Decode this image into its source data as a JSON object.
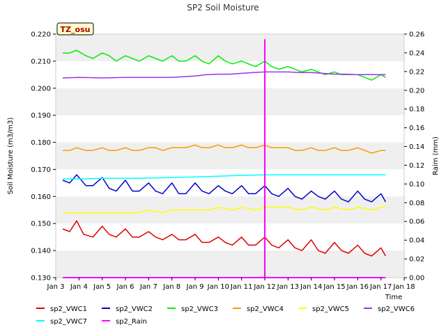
{
  "chart_data": {
    "type": "line",
    "title": "SP2 Soil Moisture",
    "site_label": "TZ_osu",
    "xlabel": "Time",
    "ylabel": "Soil Moisture (m3/m3)",
    "y2label": "Raim (mm)",
    "xlim": [
      3,
      18
    ],
    "ylim": [
      0.13,
      0.22
    ],
    "y2lim": [
      0.0,
      0.26
    ],
    "x_ticks": [
      {
        "value": 3,
        "label": "Jan 3"
      },
      {
        "value": 4,
        "label": "Jan 4"
      },
      {
        "value": 5,
        "label": "Jan 5"
      },
      {
        "value": 6,
        "label": "Jan 6"
      },
      {
        "value": 7,
        "label": "Jan 7"
      },
      {
        "value": 8,
        "label": "Jan 8"
      },
      {
        "value": 9,
        "label": "Jan 9"
      },
      {
        "value": 10,
        "label": "Jan 10"
      },
      {
        "value": 11,
        "label": "Jan 11"
      },
      {
        "value": 12,
        "label": "Jan 12"
      },
      {
        "value": 13,
        "label": "Jan 13"
      },
      {
        "value": 14,
        "label": "Jan 14"
      },
      {
        "value": 15,
        "label": "Jan 15"
      },
      {
        "value": 16,
        "label": "Jan 16"
      },
      {
        "value": 17,
        "label": "Jan 17"
      },
      {
        "value": 18,
        "label": "Jan 18"
      }
    ],
    "y_ticks": [
      "0.130",
      "0.140",
      "0.150",
      "0.160",
      "0.170",
      "0.180",
      "0.190",
      "0.200",
      "0.210",
      "0.220"
    ],
    "y2_ticks": [
      "0.00",
      "0.02",
      "0.04",
      "0.06",
      "0.08",
      "0.10",
      "0.12",
      "0.14",
      "0.16",
      "0.18",
      "0.20",
      "0.22",
      "0.24",
      "0.26"
    ],
    "grid": "horizontal bands",
    "legend_placement": "bottom",
    "series": [
      {
        "name": "sp2_VWC1",
        "color": "#dd0000",
        "axis": "left",
        "x": [
          3.3,
          3.6,
          3.9,
          4.2,
          4.6,
          5.0,
          5.3,
          5.6,
          6.0,
          6.3,
          6.6,
          7.0,
          7.3,
          7.6,
          8.0,
          8.3,
          8.6,
          9.0,
          9.3,
          9.6,
          10.0,
          10.3,
          10.6,
          11.0,
          11.3,
          11.6,
          12.0,
          12.3,
          12.6,
          13.0,
          13.3,
          13.6,
          14.0,
          14.3,
          14.6,
          15.0,
          15.3,
          15.6,
          16.0,
          16.3,
          16.6,
          17.0,
          17.2
        ],
        "y": [
          0.148,
          0.147,
          0.151,
          0.146,
          0.145,
          0.149,
          0.146,
          0.145,
          0.148,
          0.145,
          0.145,
          0.147,
          0.145,
          0.144,
          0.146,
          0.144,
          0.144,
          0.146,
          0.143,
          0.143,
          0.145,
          0.143,
          0.142,
          0.145,
          0.142,
          0.142,
          0.145,
          0.142,
          0.141,
          0.144,
          0.141,
          0.14,
          0.144,
          0.14,
          0.139,
          0.143,
          0.14,
          0.139,
          0.142,
          0.139,
          0.138,
          0.141,
          0.138
        ]
      },
      {
        "name": "sp2_VWC2",
        "color": "#0000cc",
        "axis": "left",
        "x": [
          3.3,
          3.6,
          3.9,
          4.3,
          4.6,
          5.0,
          5.3,
          5.6,
          6.0,
          6.3,
          6.6,
          7.0,
          7.3,
          7.6,
          8.0,
          8.3,
          8.6,
          9.0,
          9.3,
          9.6,
          10.0,
          10.3,
          10.6,
          11.0,
          11.3,
          11.6,
          12.0,
          12.3,
          12.6,
          13.0,
          13.3,
          13.6,
          14.0,
          14.3,
          14.6,
          15.0,
          15.3,
          15.6,
          16.0,
          16.3,
          16.6,
          17.0,
          17.2
        ],
        "y": [
          0.166,
          0.165,
          0.168,
          0.164,
          0.164,
          0.167,
          0.163,
          0.162,
          0.166,
          0.162,
          0.162,
          0.165,
          0.162,
          0.161,
          0.165,
          0.161,
          0.161,
          0.165,
          0.162,
          0.161,
          0.164,
          0.162,
          0.161,
          0.164,
          0.161,
          0.161,
          0.164,
          0.161,
          0.16,
          0.163,
          0.16,
          0.159,
          0.162,
          0.16,
          0.159,
          0.162,
          0.159,
          0.158,
          0.162,
          0.159,
          0.158,
          0.161,
          0.158
        ]
      },
      {
        "name": "sp2_VWC3",
        "color": "#00ee00",
        "axis": "left",
        "x": [
          3.3,
          3.6,
          3.9,
          4.3,
          4.6,
          5.0,
          5.3,
          5.6,
          6.0,
          6.3,
          6.6,
          7.0,
          7.3,
          7.6,
          8.0,
          8.3,
          8.6,
          9.0,
          9.3,
          9.6,
          10.0,
          10.3,
          10.6,
          11.0,
          11.3,
          11.6,
          12.0,
          12.3,
          12.6,
          13.0,
          13.3,
          13.6,
          14.0,
          14.3,
          14.6,
          15.0,
          15.3,
          15.6,
          16.0,
          16.3,
          16.6,
          17.0,
          17.2
        ],
        "y": [
          0.213,
          0.213,
          0.214,
          0.212,
          0.211,
          0.213,
          0.212,
          0.21,
          0.212,
          0.211,
          0.21,
          0.212,
          0.211,
          0.21,
          0.212,
          0.21,
          0.21,
          0.212,
          0.21,
          0.209,
          0.212,
          0.21,
          0.209,
          0.21,
          0.209,
          0.208,
          0.21,
          0.208,
          0.207,
          0.208,
          0.207,
          0.206,
          0.207,
          0.206,
          0.205,
          0.206,
          0.205,
          0.205,
          0.205,
          0.204,
          0.203,
          0.205,
          0.204
        ]
      },
      {
        "name": "sp2_VWC4",
        "color": "#ff9900",
        "axis": "left",
        "x": [
          3.3,
          3.6,
          3.9,
          4.3,
          4.6,
          5.0,
          5.3,
          5.6,
          6.0,
          6.3,
          6.6,
          7.0,
          7.3,
          7.6,
          8.0,
          8.3,
          8.6,
          9.0,
          9.3,
          9.6,
          10.0,
          10.3,
          10.6,
          11.0,
          11.3,
          11.6,
          12.0,
          12.3,
          12.6,
          13.0,
          13.3,
          13.6,
          14.0,
          14.3,
          14.6,
          15.0,
          15.3,
          15.6,
          16.0,
          16.3,
          16.6,
          17.0,
          17.2
        ],
        "y": [
          0.177,
          0.177,
          0.178,
          0.177,
          0.177,
          0.178,
          0.177,
          0.177,
          0.178,
          0.177,
          0.177,
          0.178,
          0.178,
          0.177,
          0.178,
          0.178,
          0.178,
          0.179,
          0.178,
          0.178,
          0.179,
          0.178,
          0.178,
          0.179,
          0.178,
          0.178,
          0.179,
          0.178,
          0.178,
          0.178,
          0.177,
          0.177,
          0.178,
          0.177,
          0.177,
          0.178,
          0.177,
          0.177,
          0.178,
          0.177,
          0.176,
          0.177,
          0.177
        ]
      },
      {
        "name": "sp2_VWC5",
        "color": "#ffff00",
        "axis": "left",
        "x": [
          3.3,
          4.0,
          5.0,
          6.0,
          6.6,
          7.0,
          7.6,
          8.0,
          9.0,
          9.6,
          10.0,
          10.6,
          11.0,
          11.6,
          12.0,
          12.6,
          13.0,
          13.6,
          14.0,
          14.6,
          15.0,
          15.6,
          16.0,
          16.6,
          17.0,
          17.2
        ],
        "y": [
          0.154,
          0.154,
          0.154,
          0.154,
          0.154,
          0.155,
          0.154,
          0.155,
          0.155,
          0.155,
          0.156,
          0.155,
          0.156,
          0.155,
          0.156,
          0.156,
          0.156,
          0.155,
          0.156,
          0.155,
          0.156,
          0.155,
          0.156,
          0.155,
          0.156,
          0.156
        ]
      },
      {
        "name": "sp2_VWC6",
        "color": "#9933ee",
        "axis": "left",
        "x": [
          3.3,
          4.0,
          5.0,
          6.0,
          7.0,
          8.0,
          9.0,
          9.5,
          10.0,
          10.5,
          11.0,
          11.5,
          12.0,
          12.5,
          13.0,
          13.5,
          14.0,
          14.5,
          15.0,
          15.5,
          16.0,
          16.5,
          17.0,
          17.2
        ],
        "y": [
          0.2038,
          0.204,
          0.2038,
          0.204,
          0.204,
          0.204,
          0.2045,
          0.205,
          0.2052,
          0.2052,
          0.2055,
          0.2058,
          0.206,
          0.206,
          0.206,
          0.2058,
          0.2058,
          0.2055,
          0.2052,
          0.2052,
          0.205,
          0.205,
          0.205,
          0.205
        ]
      },
      {
        "name": "sp2_VWC7",
        "color": "#00ffff",
        "axis": "left",
        "x": [
          3.3,
          4.0,
          5.0,
          6.0,
          7.0,
          8.0,
          9.0,
          10.0,
          11.0,
          12.0,
          13.0,
          14.0,
          15.0,
          16.0,
          17.0,
          17.2
        ],
        "y": [
          0.1665,
          0.1665,
          0.1667,
          0.1667,
          0.1668,
          0.167,
          0.1672,
          0.1675,
          0.1678,
          0.168,
          0.168,
          0.168,
          0.168,
          0.168,
          0.168,
          0.168
        ]
      },
      {
        "name": "sp2_Rain",
        "color": "#ff00ff",
        "axis": "right",
        "x": [
          3.3,
          12.0,
          12.0,
          12.0,
          17.2
        ],
        "y": [
          0.0,
          0.0,
          0.254,
          0.0,
          0.0
        ]
      }
    ],
    "legend_entries": [
      {
        "label": "sp2_VWC1",
        "color": "#dd0000"
      },
      {
        "label": "sp2_VWC2",
        "color": "#0000cc"
      },
      {
        "label": "sp2_VWC3",
        "color": "#00ee00"
      },
      {
        "label": "sp2_VWC4",
        "color": "#ff9900"
      },
      {
        "label": "sp2_VWC5",
        "color": "#ffff00"
      },
      {
        "label": "sp2_VWC6",
        "color": "#9933ee"
      },
      {
        "label": "sp2_VWC7",
        "color": "#00ffff"
      },
      {
        "label": "sp2_Rain",
        "color": "#ff00ff"
      }
    ]
  }
}
